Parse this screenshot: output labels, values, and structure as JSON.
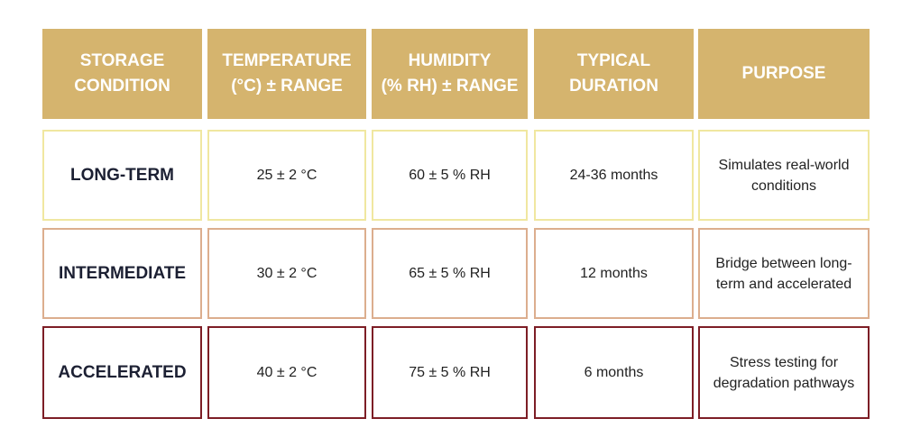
{
  "colors": {
    "header_bg": "#d5b46e",
    "long_term_border": "#f0e7a0",
    "intermediate_border": "#dcae8e",
    "accelerated_border": "#7d1e26"
  },
  "headers": [
    "STORAGE\nCONDITION",
    "TEMPERATURE\n(°C) ± RANGE",
    "HUMIDITY\n(% RH) ± RANGE",
    "TYPICAL\nDURATION",
    "PURPOSE"
  ],
  "rows": [
    {
      "condition": "LONG-TERM",
      "temperature": "25 ± 2 °C",
      "humidity": "60 ± 5 % RH",
      "duration": "24-36 months",
      "purpose": "Simulates real-world\nconditions"
    },
    {
      "condition": "INTERMEDIATE",
      "temperature": "30 ± 2 °C",
      "humidity": "65 ± 5 % RH",
      "duration": "12 months",
      "purpose": "Bridge between long-\nterm and accelerated"
    },
    {
      "condition": "ACCELERATED",
      "temperature": "40 ± 2 °C",
      "humidity": "75 ± 5 % RH",
      "duration": "6 months",
      "purpose": "Stress testing for\ndegradation pathways"
    }
  ]
}
